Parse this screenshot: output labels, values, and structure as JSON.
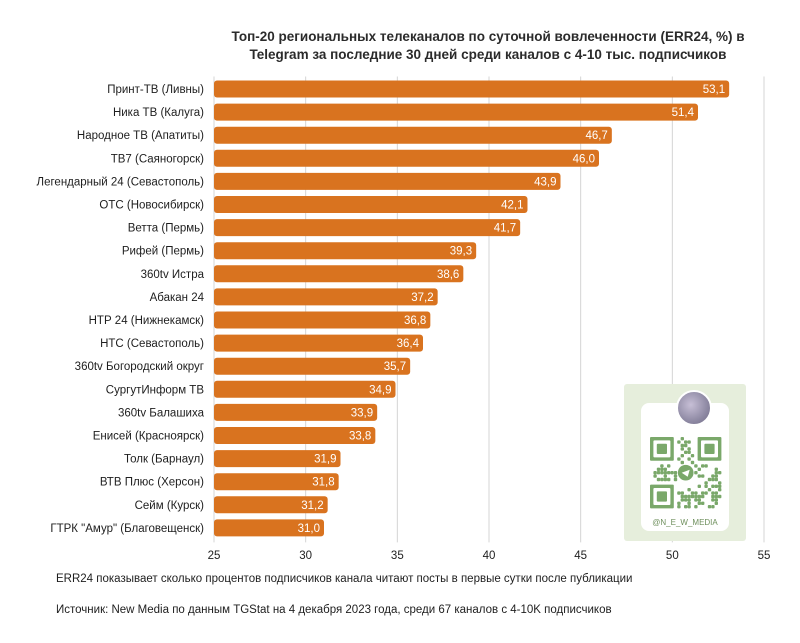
{
  "title_line1": "Топ-20 региональных телеканалов по суточной вовлеченности (ERR24, %) в",
  "title_line2": "Telegram за последние 30 дней среди каналов с 4-10 тыс. подписчиков",
  "footnote1": "ERR24 показывает сколько процентов подписчиков канала читают посты в первые сутки после публикации",
  "footnote2": "Источник: New Media по данным TGStat на 4 декабря 2023 года, среди 67 каналов с 4-10K подписчиков",
  "qr_handle": "@N_E_W_MEDIA",
  "colors": {
    "bar": "#d9731f",
    "qr_background": "#e6eedc",
    "qr_modules": "#7aa86a"
  },
  "chart_data": {
    "type": "bar",
    "orientation": "horizontal",
    "categories": [
      "Принт-ТВ (Ливны)",
      "Ника ТВ (Калуга)",
      "Народное ТВ (Апатиты)",
      "ТВ7 (Саяногорск)",
      "Легендарный 24 (Севастополь)",
      "ОТС (Новосибирск)",
      "Ветта (Пермь)",
      "Рифей (Пермь)",
      "360tv Истра",
      "Абакан 24",
      "НТР 24 (Нижнекамск)",
      "НТС (Севастополь)",
      "360tv Богородский округ",
      "СургутИнформ ТВ",
      "360tv Балашиха",
      "Енисей (Красноярск)",
      "Толк (Барнаул)",
      "ВТВ Плюс (Херсон)",
      "Сейм (Курск)",
      "ГТРК \"Амур\" (Благовещенск)"
    ],
    "values": [
      53.1,
      51.4,
      46.7,
      46.0,
      43.9,
      42.1,
      41.7,
      39.3,
      38.6,
      37.2,
      36.8,
      36.4,
      35.7,
      34.9,
      33.9,
      33.8,
      31.9,
      31.8,
      31.2,
      31.0
    ],
    "value_labels": [
      "53,1",
      "51,4",
      "46,7",
      "46,0",
      "43,9",
      "42,1",
      "41,7",
      "39,3",
      "38,6",
      "37,2",
      "36,8",
      "36,4",
      "35,7",
      "34,9",
      "33,9",
      "33,8",
      "31,9",
      "31,8",
      "31,2",
      "31,0"
    ],
    "xlim": [
      25,
      55
    ],
    "xticks": [
      25,
      30,
      35,
      40,
      45,
      50,
      55
    ],
    "grid": true,
    "legend": "none"
  }
}
